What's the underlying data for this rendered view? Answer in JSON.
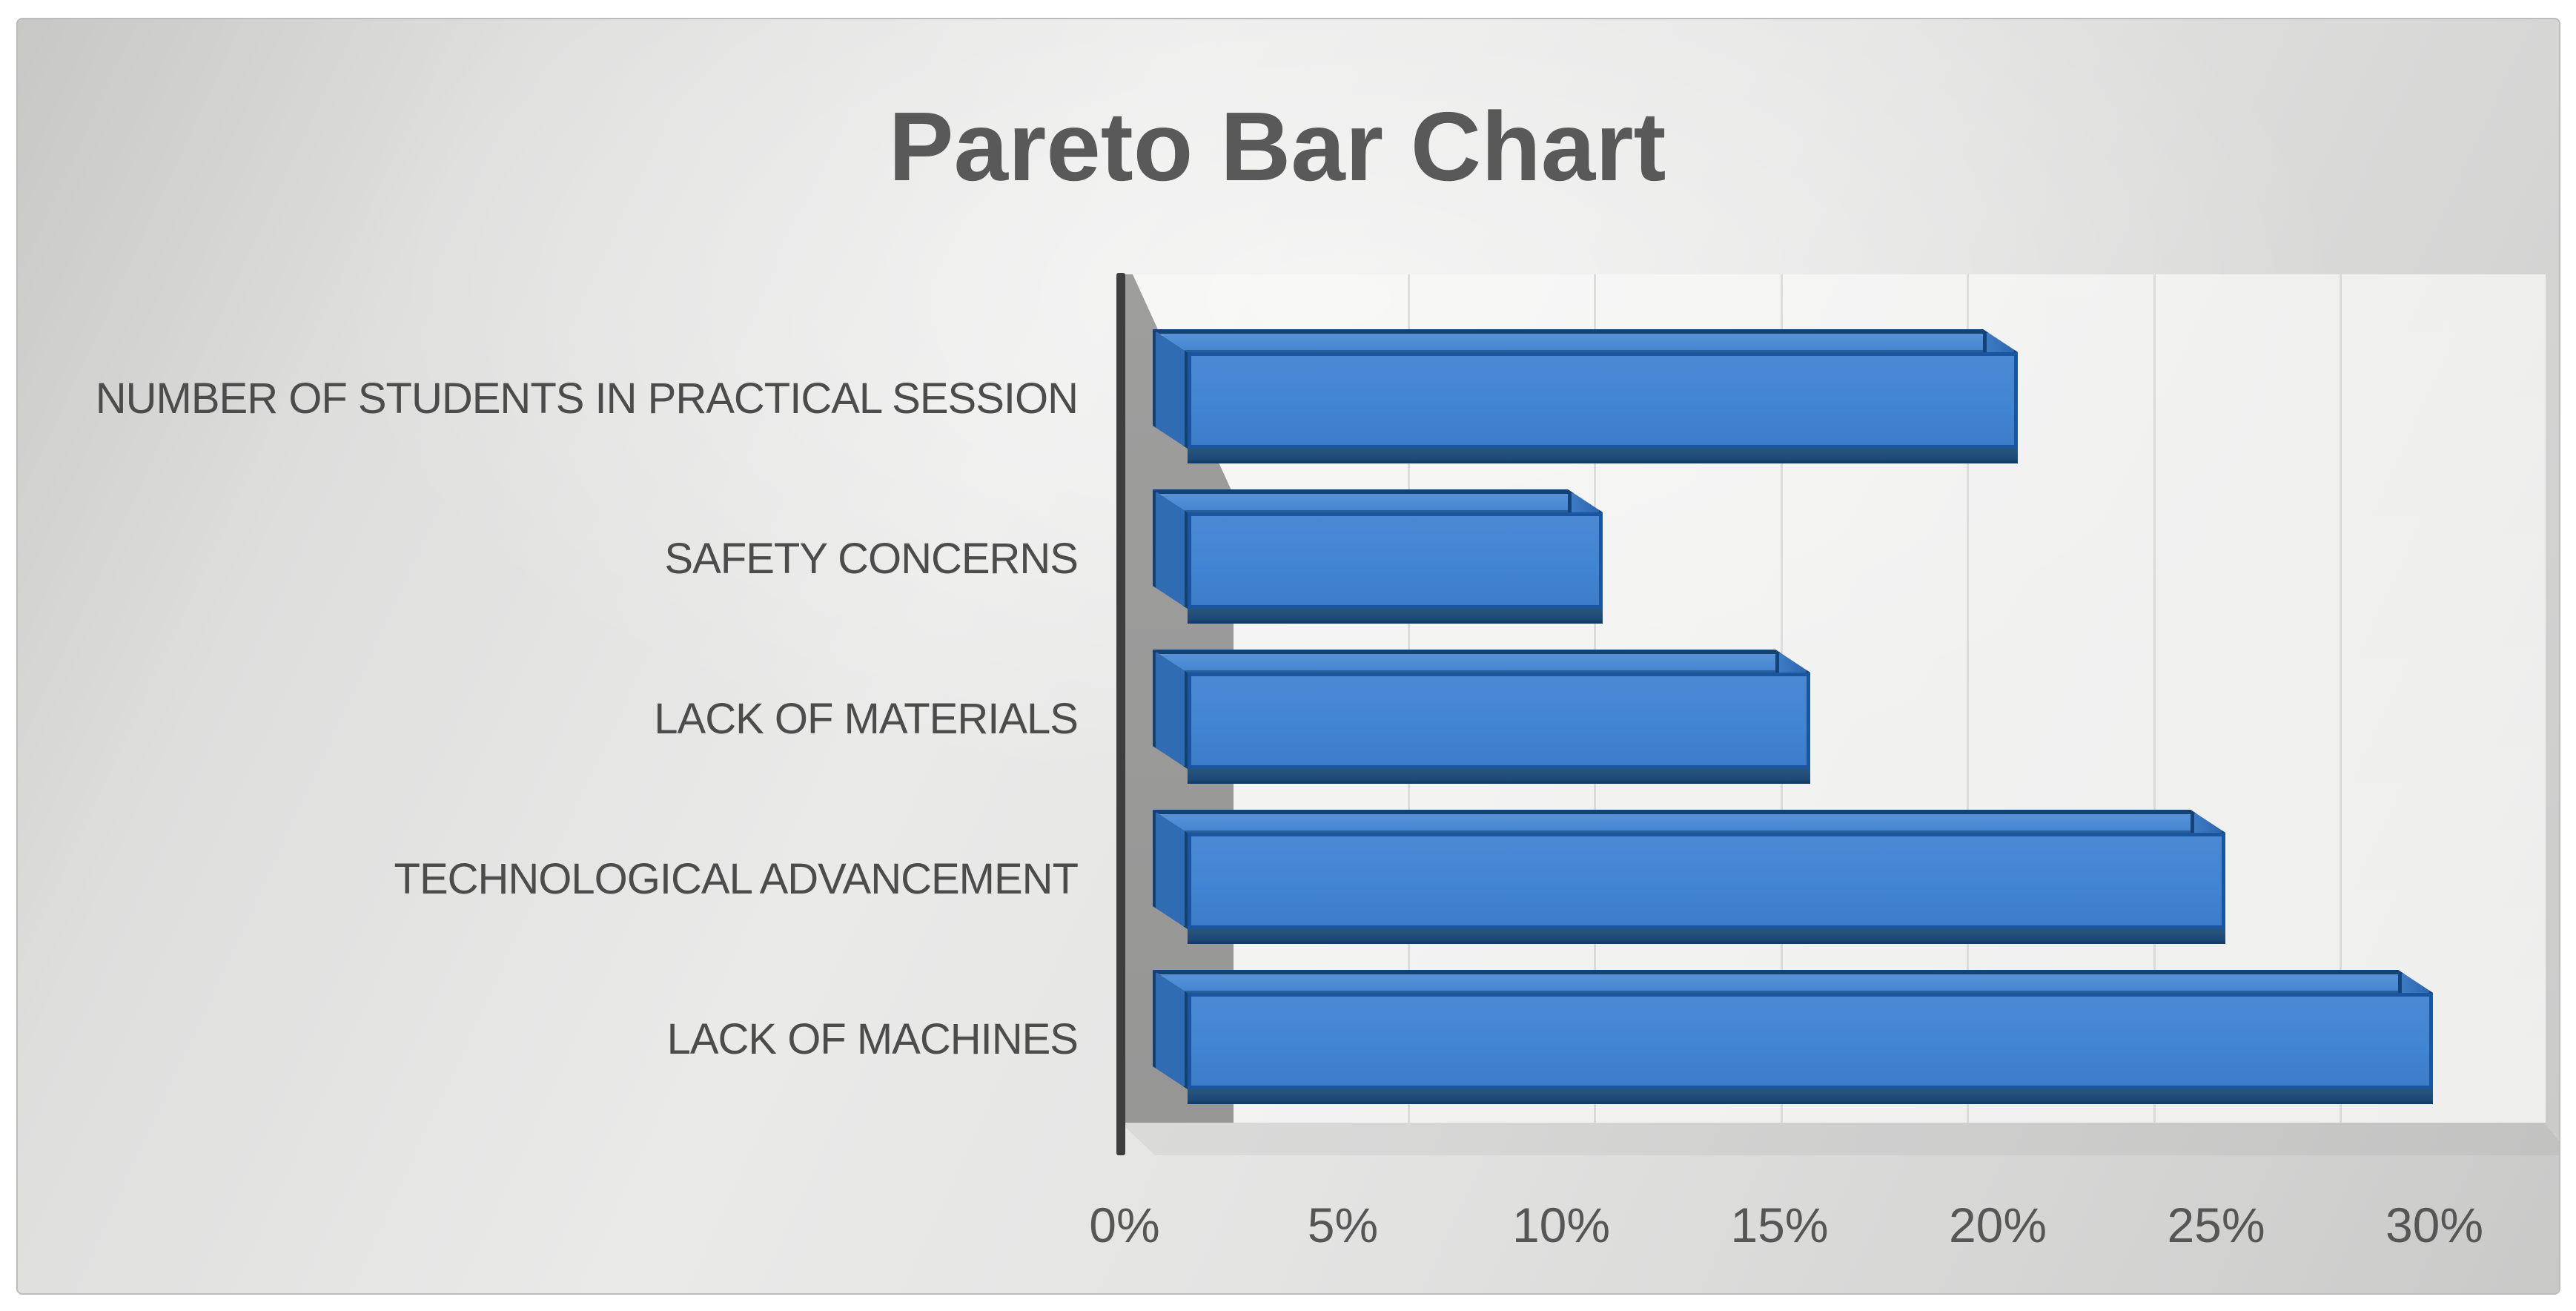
{
  "page": {
    "title": "Pareto Bar Chart"
  },
  "chart_data": {
    "type": "bar",
    "orientation": "horizontal",
    "style": "3d",
    "title": "Pareto Bar Chart",
    "categories": [
      "NUMBER OF STUDENTS IN PRACTICAL SESSION",
      "SAFETY CONCERNS",
      "LACK OF MATERIALS",
      "TECHNOLOGICAL ADVANCEMENT",
      "LACK OF MACHINES"
    ],
    "values": [
      20,
      10,
      15,
      25,
      30
    ],
    "unit": "%",
    "x_tick_labels": [
      "0%",
      "5%",
      "10%",
      "15%",
      "20%",
      "25%",
      "30%"
    ],
    "x_tick_values": [
      0,
      5,
      10,
      15,
      20,
      25,
      30
    ],
    "xlim": [
      0,
      30
    ],
    "grid": true,
    "legend": "none",
    "colors": {
      "bar_face": "#4285D2",
      "bar_face_light": "#5E97DB",
      "bar_end_cap": "#356FB8",
      "bar_underside": "#1E4A78",
      "bar_border": "#11477F",
      "axis_line": "#3E3E3E",
      "wall_side": "#9E9E9D",
      "wall_back": "#F5F5F4",
      "gridline": "#D8D8D6",
      "title_text": "#595959",
      "label_text": "#4C4C4C",
      "tick_text": "#565656",
      "panel_light": "#EAEAE9",
      "panel_dark": "#C7C7C6",
      "page_background": "#FFFFFF"
    }
  }
}
